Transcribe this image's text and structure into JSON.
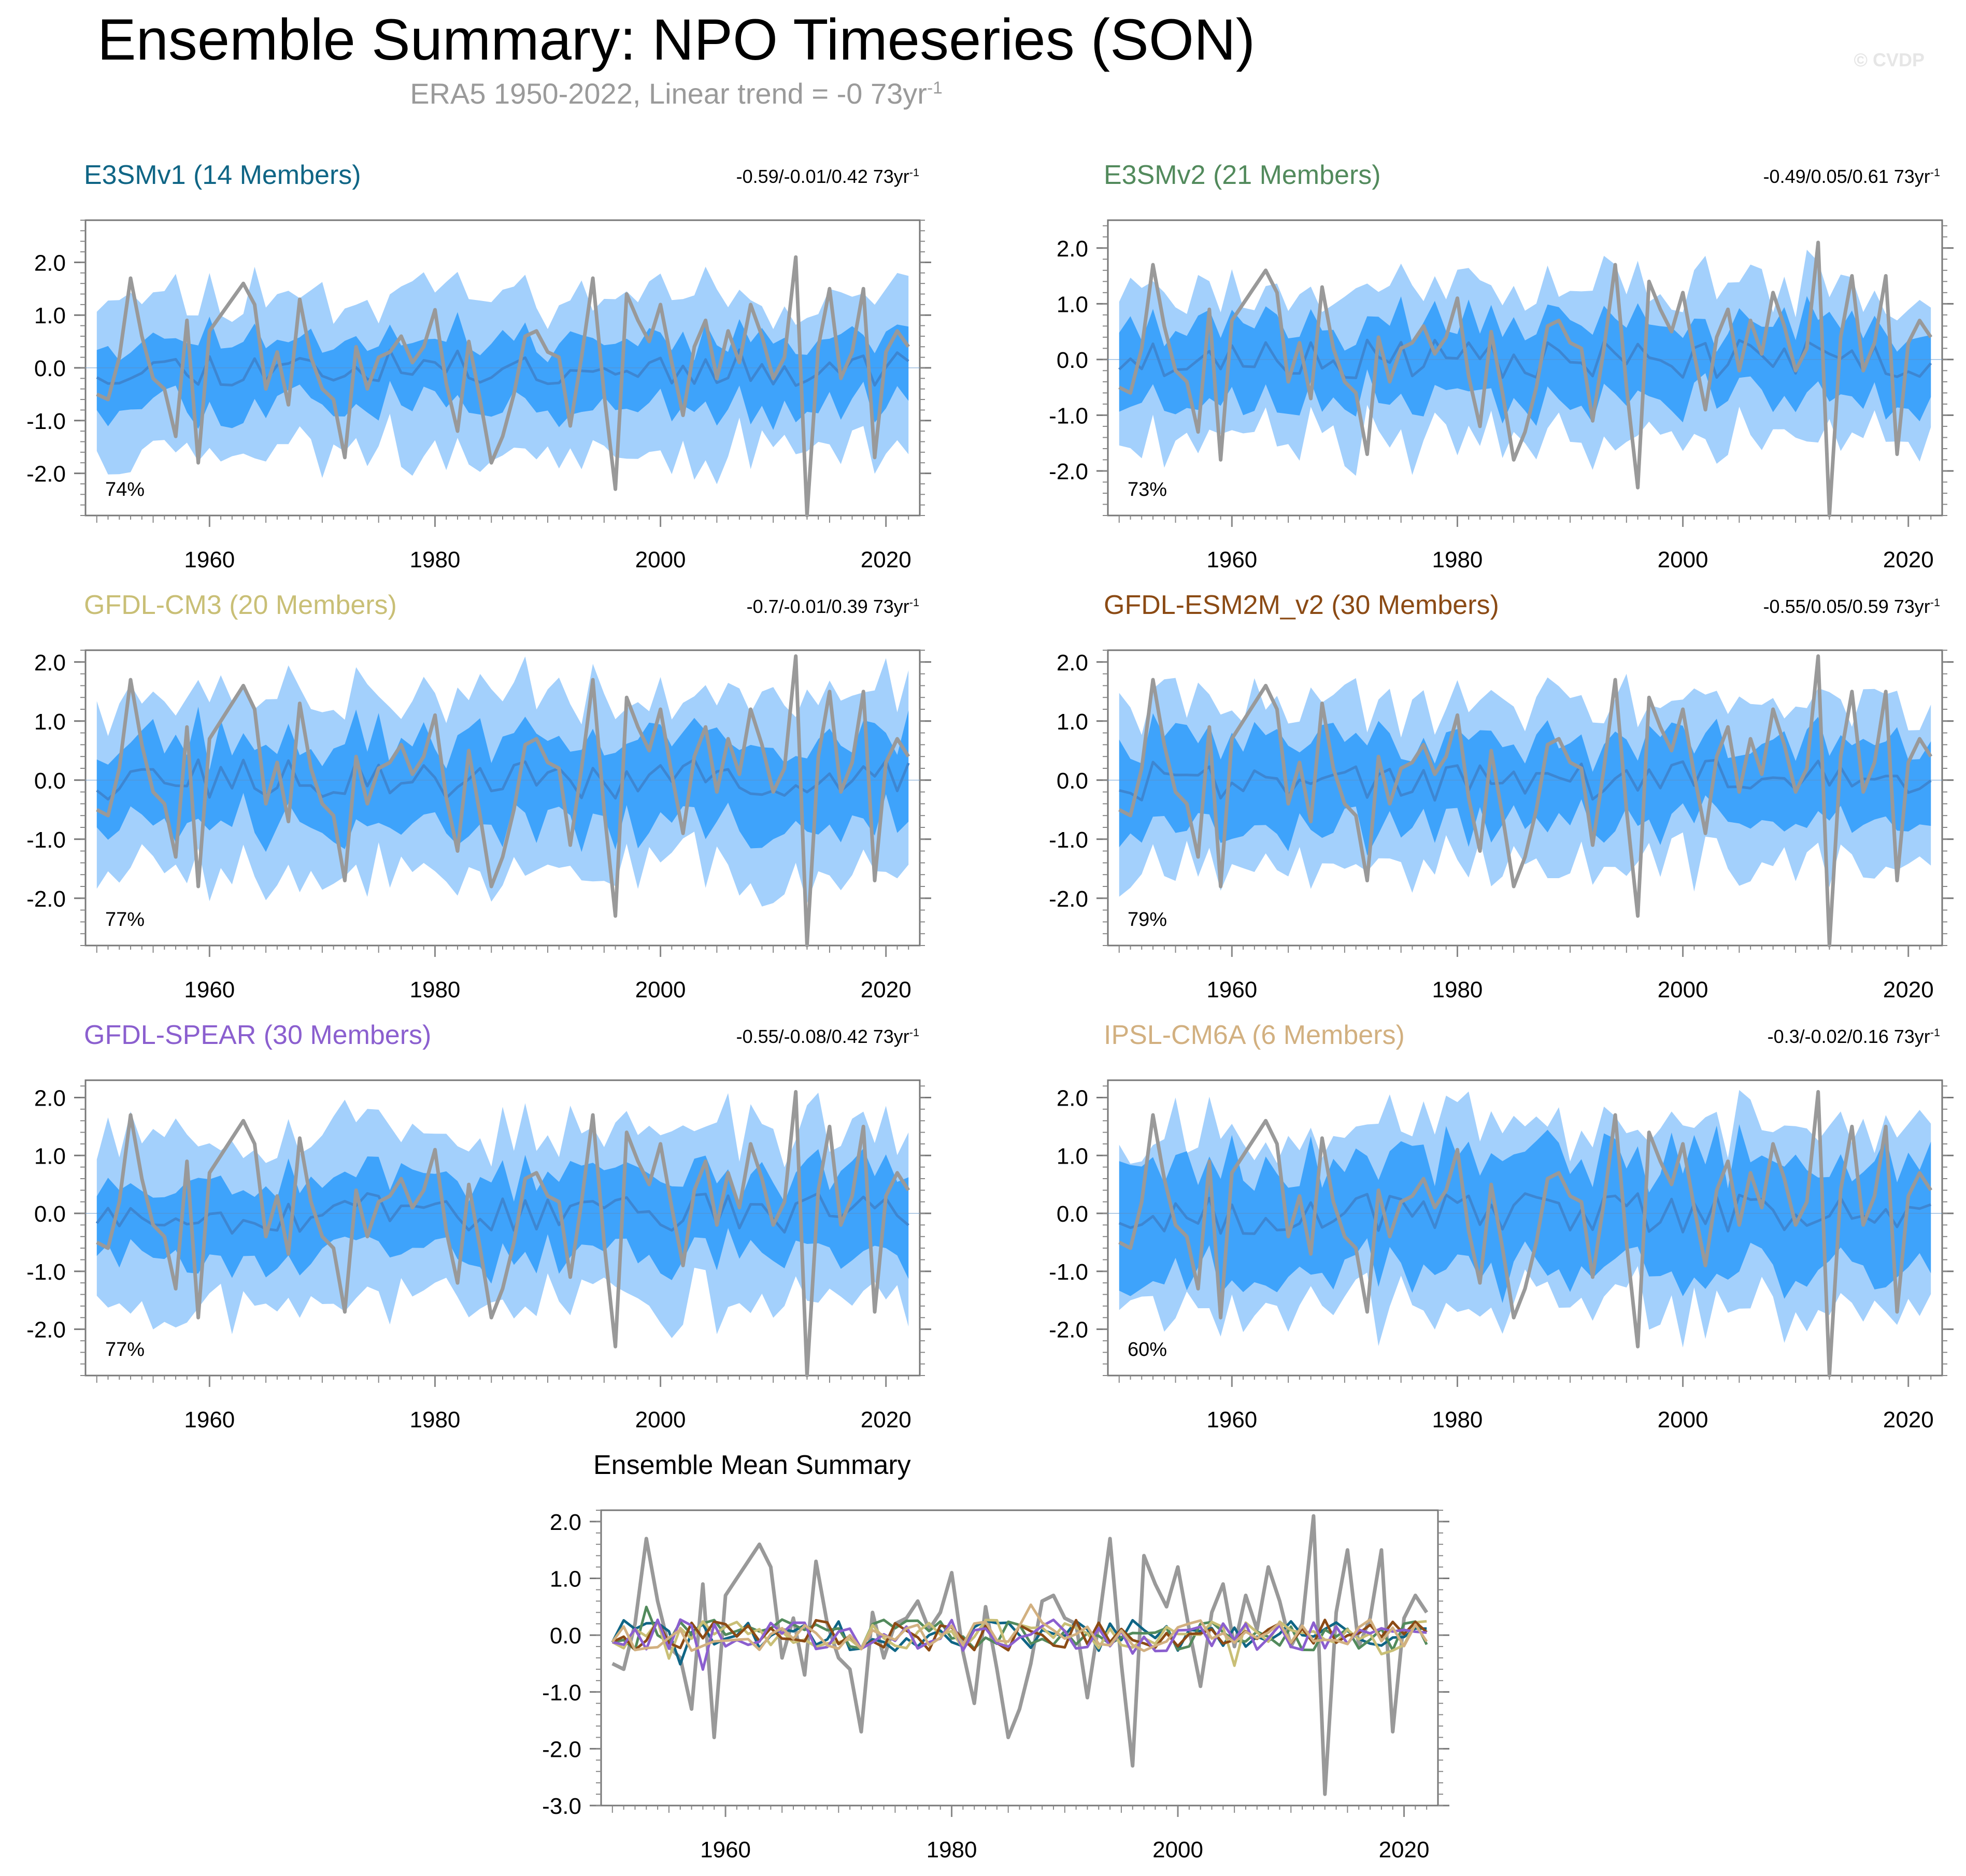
{
  "title": "Ensemble Summary: NPO Timeseries (SON)",
  "subtitle": {
    "text": "ERA5 1950-2022, Linear trend = -0 73yr",
    "superscript": "-1"
  },
  "credit": "© CVDP",
  "colors": {
    "outer_band": "#a3d0fc",
    "inner_band": "#3ea3fb",
    "ensemble_mean": "#3d86d2",
    "observations": "#999999"
  },
  "chart_data": [
    {
      "type": "area",
      "id": "e3smv1",
      "title": "E3SMv1 (14 Members)",
      "title_color": "#0f6585",
      "trend": "-0.59/-0.01/0.42 73yr",
      "trend_superscript": "-1",
      "percent": "74%",
      "ylim": [
        -2.8,
        2.8
      ],
      "yticks": [
        "2.0",
        "1.0",
        "0.0",
        "-1.0",
        "-2.0"
      ],
      "xticks": [
        "1960",
        "1980",
        "2000",
        "2020"
      ],
      "xlim": [
        1949,
        2023
      ],
      "seed": 11,
      "outer_scale": 1.25,
      "inner_scale": 0.55
    },
    {
      "type": "area",
      "id": "e3smv2",
      "title": "E3SMv2 (21 Members)",
      "title_color": "#528a5c",
      "trend": "-0.49/0.05/0.61 73yr",
      "trend_superscript": "-1",
      "percent": "73%",
      "ylim": [
        -2.8,
        2.5
      ],
      "yticks": [
        "2.0",
        "1.0",
        "0.0",
        "-1.0",
        "-2.0"
      ],
      "xticks": [
        "1960",
        "1980",
        "2000",
        "2020"
      ],
      "xlim": [
        1949,
        2023
      ],
      "seed": 23,
      "outer_scale": 1.15,
      "inner_scale": 0.6
    },
    {
      "type": "area",
      "id": "gfdl-cm3",
      "title": "GFDL-CM3 (20 Members)",
      "title_color": "#c9bf76",
      "trend": "-0.7/-0.01/0.39 73yr",
      "trend_superscript": "-1",
      "percent": "77%",
      "ylim": [
        -2.8,
        2.2
      ],
      "yticks": [
        "2.0",
        "1.0",
        "0.0",
        "-1.0",
        "-2.0"
      ],
      "xticks": [
        "1960",
        "1980",
        "2000",
        "2020"
      ],
      "xlim": [
        1949,
        2023
      ],
      "seed": 37,
      "outer_scale": 1.25,
      "inner_scale": 0.65
    },
    {
      "type": "area",
      "id": "gfdl-esm2m",
      "title": "GFDL-ESM2M_v2 (30 Members)",
      "title_color": "#8b4a14",
      "trend": "-0.55/0.05/0.59 73yr",
      "trend_superscript": "-1",
      "percent": "79%",
      "ylim": [
        -2.8,
        2.2
      ],
      "yticks": [
        "2.0",
        "1.0",
        "0.0",
        "-1.0",
        "-2.0"
      ],
      "xticks": [
        "1960",
        "1980",
        "2000",
        "2020"
      ],
      "xlim": [
        1949,
        2023
      ],
      "seed": 41,
      "outer_scale": 1.15,
      "inner_scale": 0.65
    },
    {
      "type": "area",
      "id": "gfdl-spear",
      "title": "GFDL-SPEAR (30 Members)",
      "title_color": "#8b5fcf",
      "trend": "-0.55/-0.08/0.42 73yr",
      "trend_superscript": "-1",
      "percent": "77%",
      "ylim": [
        -2.8,
        2.3
      ],
      "yticks": [
        "2.0",
        "1.0",
        "0.0",
        "-1.0",
        "-2.0"
      ],
      "xticks": [
        "1960",
        "1980",
        "2000",
        "2020"
      ],
      "xlim": [
        1949,
        2023
      ],
      "seed": 53,
      "outer_scale": 1.25,
      "inner_scale": 0.6
    },
    {
      "type": "area",
      "id": "ipsl-cm6a",
      "title": "IPSL-CM6A (6 Members)",
      "title_color": "#d2b080",
      "trend": "-0.3/-0.02/0.16 73yr",
      "trend_superscript": "-1",
      "percent": "60%",
      "ylim": [
        -2.8,
        2.3
      ],
      "yticks": [
        "2.0",
        "1.0",
        "0.0",
        "-1.0",
        "-2.0"
      ],
      "xticks": [
        "1960",
        "1980",
        "2000",
        "2020"
      ],
      "xlim": [
        1949,
        2023
      ],
      "seed": 67,
      "outer_scale": 1.3,
      "inner_scale": 0.9
    },
    {
      "type": "line",
      "id": "ensemble-mean",
      "title": "Ensemble Mean Summary",
      "ylim": [
        -3.0,
        2.2
      ],
      "yticks": [
        "2.0",
        "1.0",
        "0.0",
        "-1.0",
        "-2.0",
        "-3.0"
      ],
      "xticks": [
        "1960",
        "1980",
        "2000",
        "2020"
      ],
      "xlim": [
        1949,
        2023
      ],
      "series": [
        {
          "name": "E3SMv1",
          "color": "#0f6585",
          "seed": 101
        },
        {
          "name": "E3SMv2",
          "color": "#528a5c",
          "seed": 103
        },
        {
          "name": "GFDL-CM3",
          "color": "#c9bf76",
          "seed": 107
        },
        {
          "name": "GFDL-ESM2M_v2",
          "color": "#8b4a14",
          "seed": 109
        },
        {
          "name": "GFDL-SPEAR",
          "color": "#8b5fcf",
          "seed": 113
        },
        {
          "name": "IPSL-CM6A",
          "color": "#d2b080",
          "seed": 127
        }
      ]
    }
  ],
  "observations": {
    "name": "ERA5",
    "years": [
      1950,
      1951,
      1952,
      1953,
      1954,
      1955,
      1956,
      1957,
      1958,
      1959,
      1960,
      1961,
      1962,
      1963,
      1964,
      1965,
      1966,
      1967,
      1968,
      1969,
      1970,
      1971,
      1972,
      1973,
      1974,
      1975,
      1976,
      1977,
      1978,
      1979,
      1980,
      1981,
      1982,
      1983,
      1984,
      1985,
      1986,
      1987,
      1988,
      1989,
      1990,
      1991,
      1992,
      1993,
      1994,
      1995,
      1996,
      1997,
      1998,
      1999,
      2000,
      2001,
      2002,
      2003,
      2004,
      2005,
      2006,
      2007,
      2008,
      2009,
      2010,
      2011,
      2012,
      2013,
      2014,
      2015,
      2016,
      2017,
      2018,
      2019,
      2020,
      2021,
      2022
    ],
    "values": [
      -0.5,
      -0.6,
      0.2,
      1.7,
      0.6,
      -0.2,
      -0.4,
      -1.3,
      0.9,
      -1.8,
      0.7,
      1.0,
      1.3,
      1.6,
      1.2,
      -0.4,
      0.3,
      -0.7,
      1.3,
      0.2,
      -0.4,
      -0.6,
      -1.7,
      0.4,
      -0.4,
      0.2,
      0.3,
      0.6,
      0.1,
      0.4,
      1.1,
      -0.3,
      -1.2,
      0.5,
      -0.6,
      -1.8,
      -1.3,
      -0.5,
      0.6,
      0.7,
      0.3,
      0.2,
      -1.1,
      0.2,
      1.7,
      -0.5,
      -2.3,
      1.4,
      0.9,
      0.5,
      1.2,
      0.1,
      -0.9,
      0.4,
      0.9,
      -0.2,
      0.7,
      0.1,
      1.2,
      0.6,
      -0.2,
      0.2,
      2.1,
      -2.8,
      0.4,
      1.5,
      -0.2,
      0.3,
      1.5,
      -1.7,
      0.3,
      0.7,
      0.4
    ]
  }
}
